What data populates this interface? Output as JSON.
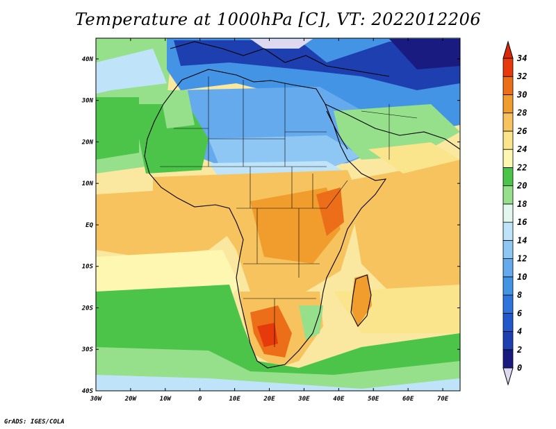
{
  "title": "Temperature at 1000hPa [C], VT: 2022012206",
  "credit": "GrADS: IGES/COLA",
  "map": {
    "lon_range": [
      -30,
      75
    ],
    "lat_range": [
      -40,
      45
    ],
    "lon_ticks": [
      {
        "value": -30,
        "label": "30W"
      },
      {
        "value": -20,
        "label": "20W"
      },
      {
        "value": -10,
        "label": "10W"
      },
      {
        "value": 0,
        "label": "0"
      },
      {
        "value": 10,
        "label": "10E"
      },
      {
        "value": 20,
        "label": "20E"
      },
      {
        "value": 30,
        "label": "30E"
      },
      {
        "value": 40,
        "label": "40E"
      },
      {
        "value": 50,
        "label": "50E"
      },
      {
        "value": 60,
        "label": "60E"
      },
      {
        "value": 70,
        "label": "70E"
      }
    ],
    "lat_ticks": [
      {
        "value": 40,
        "label": "40N"
      },
      {
        "value": 30,
        "label": "30N"
      },
      {
        "value": 20,
        "label": "20N"
      },
      {
        "value": 10,
        "label": "10N"
      },
      {
        "value": 0,
        "label": "EQ"
      },
      {
        "value": -10,
        "label": "10S"
      },
      {
        "value": -20,
        "label": "20S"
      },
      {
        "value": -30,
        "label": "30S"
      },
      {
        "value": -40,
        "label": "40S"
      }
    ]
  },
  "colorbar": {
    "labels": [
      "0",
      "2",
      "4",
      "6",
      "8",
      "10",
      "12",
      "14",
      "16",
      "18",
      "20",
      "22",
      "24",
      "26",
      "28",
      "30",
      "32",
      "34"
    ],
    "colors": [
      "#dcd9f0",
      "#1a1b80",
      "#1e3fb0",
      "#2358cc",
      "#2e74dc",
      "#4494e6",
      "#66aaee",
      "#8ec6f4",
      "#bfe4fa",
      "#e2f8ef",
      "#96e08c",
      "#4cc44a",
      "#fdf7b2",
      "#fae48c",
      "#f6c35e",
      "#f19d2e",
      "#ec6e18",
      "#e63a0c",
      "#d82808"
    ]
  },
  "field": {
    "background_ocean_color": "#fbe8a0",
    "regions": [
      {
        "name": "med-europe",
        "color": "#4494e6"
      },
      {
        "name": "europe-cold",
        "color": "#1e3fb0"
      },
      {
        "name": "sahara",
        "color": "#66aaee"
      },
      {
        "name": "sahel",
        "color": "#8ec6f4"
      },
      {
        "name": "west-africa-green",
        "color": "#96e08c"
      },
      {
        "name": "atlantic-north",
        "color": "#96e08c"
      },
      {
        "name": "tropics",
        "color": "#f6c35e"
      },
      {
        "name": "southern-africa-hot",
        "color": "#ec6e18"
      },
      {
        "name": "south-atlantic",
        "color": "#4cc44a"
      }
    ]
  }
}
